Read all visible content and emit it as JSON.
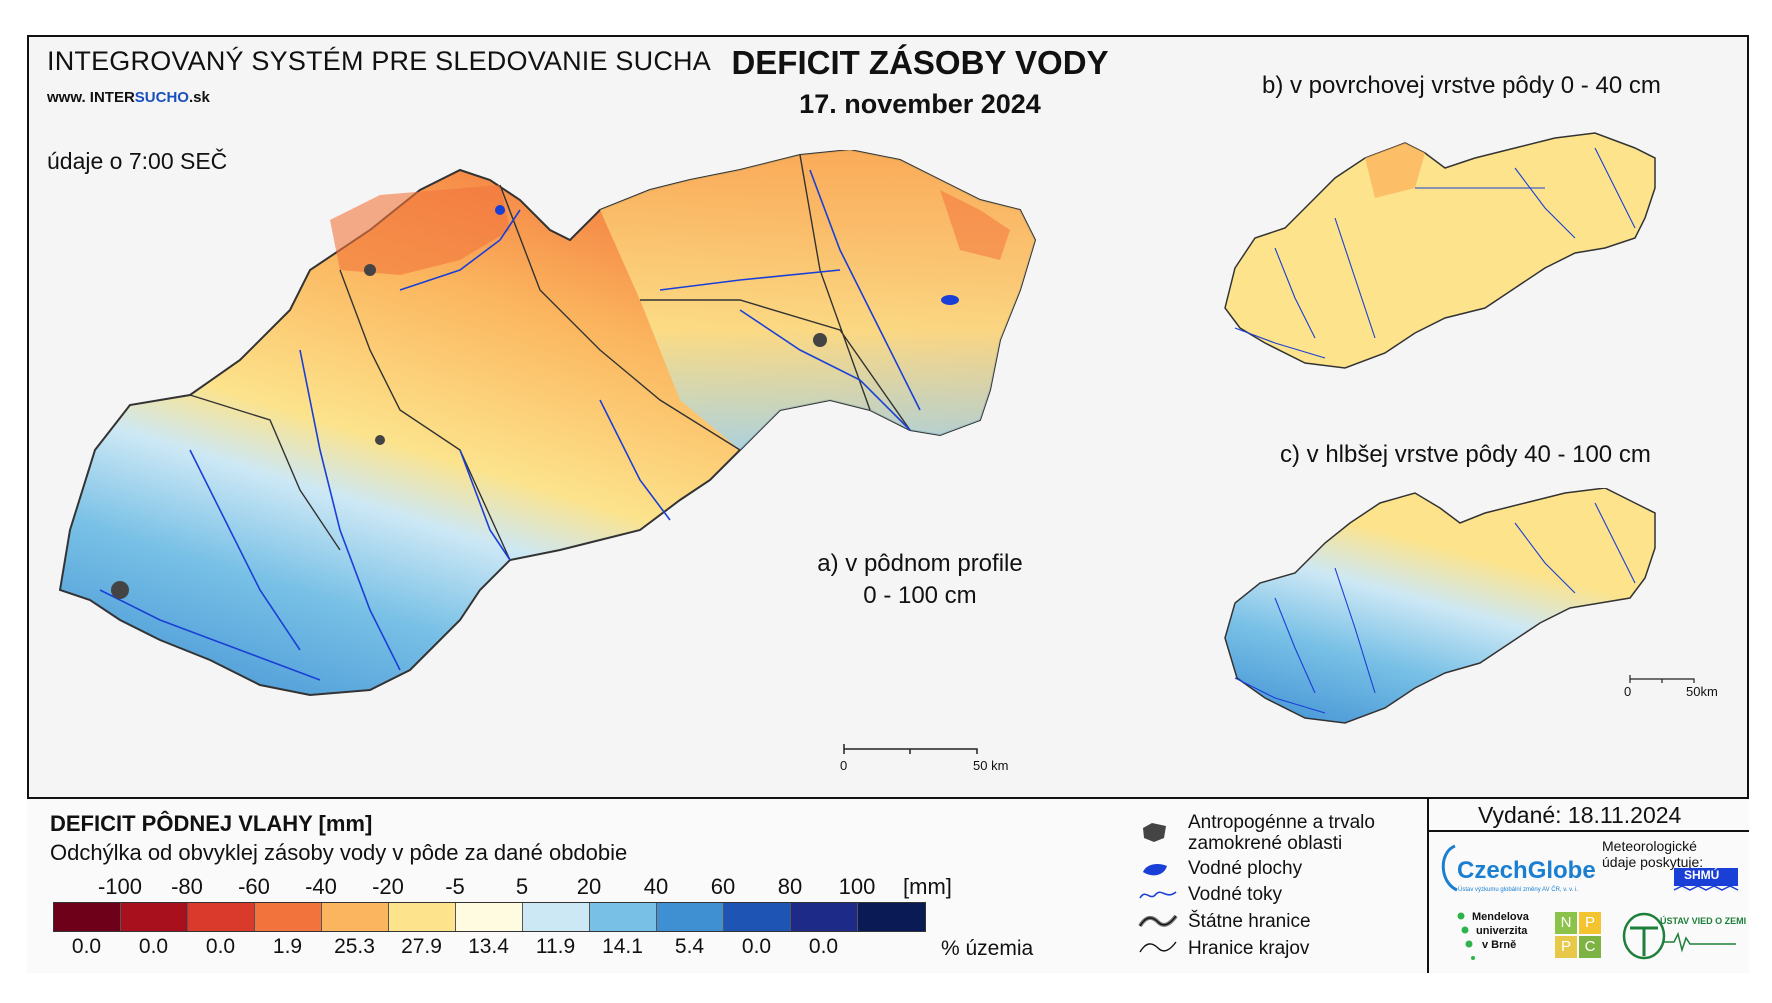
{
  "header": {
    "system_title": "INTEGROVANÝ SYSTÉM PRE SLEDOVANIE SUCHA",
    "website_prefix": "www.",
    "website_a": "INTER",
    "website_b": "SUCHO",
    "website_c": ".sk",
    "observation_time": "údaje o 7:00 SEČ",
    "main_title": "DEFICIT ZÁSOBY VODY",
    "date": "17. november 2024"
  },
  "maps": {
    "a_label_1": "a) v pôdnom profile",
    "a_label_2": "0 - 100 cm",
    "b_label": "b) v povrchovej vrstve pôdy 0 - 40 cm",
    "c_label": "c) v hlbšej vrstve pôdy 40 - 100 cm",
    "scale_main_zero": "0",
    "scale_main_end": "50 km",
    "scale_small_zero": "0",
    "scale_small_end": "50km"
  },
  "legend": {
    "title": "DEFICIT PÔDNEJ VLAHY [mm]",
    "subtitle": "Odchýlka od obvyklej zásoby vody v pôde za dané obdobie",
    "ticks": [
      "-100",
      "-80",
      "-60",
      "-40",
      "-20",
      "-5",
      "5",
      "20",
      "40",
      "60",
      "80",
      "100"
    ],
    "unit": "[mm]",
    "classes": [
      {
        "color": "#6e0019",
        "percent": "0.0"
      },
      {
        "color": "#a8101e",
        "percent": "0.0"
      },
      {
        "color": "#d93a2b",
        "percent": "0.0"
      },
      {
        "color": "#f2743c",
        "percent": "1.9"
      },
      {
        "color": "#fbb55e",
        "percent": "25.3"
      },
      {
        "color": "#fce38c",
        "percent": "27.9"
      },
      {
        "color": "#fefbe0",
        "percent": "13.4"
      },
      {
        "color": "#cde8f5",
        "percent": "11.9"
      },
      {
        "color": "#78c0e6",
        "percent": "14.1"
      },
      {
        "color": "#3f8fd3",
        "percent": "5.4"
      },
      {
        "color": "#1e55b4",
        "percent": "0.0"
      },
      {
        "color": "#1d2a87",
        "percent": "0.0"
      },
      {
        "color": "#0a1a55",
        "percent": ""
      }
    ],
    "percent_unit": "% územia"
  },
  "symbols": {
    "anthropogenic": "Antropogénne a trvalo\nzamokrené oblasti",
    "anthropogenic_1": "Antropogénne a trvalo",
    "anthropogenic_2": "zamokrené oblasti",
    "water_bodies": "Vodné plochy",
    "rivers": "Vodné toky",
    "state_border": "Štátne hranice",
    "region_border": "Hranice krajov"
  },
  "footer": {
    "issued": "Vydané: 18.11.2024",
    "czechglobe": "CzechGlobe",
    "czechglobe_sub": "Ústav výzkumu globální změny AV ČR, v. v. i.",
    "meteo_text": "Meteorologické údaje poskytuje:",
    "shmu": "SHMÚ",
    "mendel_1": "Mendelova",
    "mendel_2": "univerzita",
    "mendel_3": "v Brně",
    "nppc_n": "N",
    "nppc_p": "P",
    "nppc_p2": "P",
    "nppc_c": "C",
    "uvz": "ÚSTAV VIED O ZEMI"
  }
}
